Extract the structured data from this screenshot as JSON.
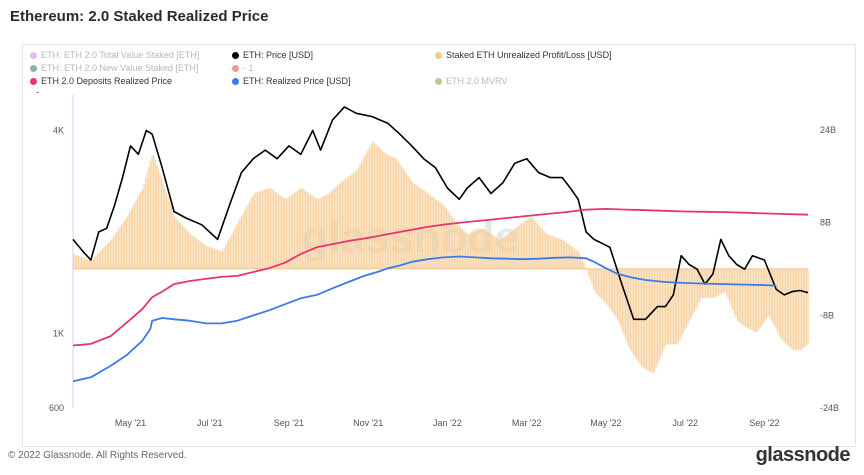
{
  "title": "Ethereum: 2.0 Staked Realized Price",
  "legend": {
    "items": [
      {
        "label": "ETH: ETH 2.0 Total Value Staked [ETH]",
        "color": "#c58ad6",
        "active": false
      },
      {
        "label": "ETH: Price [USD]",
        "color": "#000000",
        "active": true
      },
      {
        "label": "Staked ETH Unrealized Profit/Loss [USD]",
        "color": "#f6c98e",
        "active": true
      },
      {
        "label": "ETH: ETH 2.0 New Value Staked [ETH]",
        "color": "#2f6f6f",
        "active": false
      },
      {
        "label": "- 1",
        "color": "#e0463c",
        "active": false
      },
      {
        "label": "ETH 2.0 Deposits Realized Price",
        "color": "#e8336e",
        "active": true
      },
      {
        "label": "ETH: Realized Price [USD]",
        "color": "#3b7be8",
        "active": true
      },
      {
        "label": "ETH 2.0 MVRV",
        "color": "#8a9a3a",
        "active": false
      }
    ],
    "extra": "-"
  },
  "watermark": "glassnode",
  "footer": "© 2022 Glassnode. All Rights Reserved.",
  "brand": "glassnode",
  "chart_data": {
    "type": "line",
    "title": "Ethereum: 2.0 Staked Realized Price",
    "x_label_positions": [
      0.5,
      2.5,
      4.5,
      6.5,
      8.5,
      10.5,
      12.5,
      14.5,
      16.5
    ],
    "x_labels": [
      "May '21",
      "Jul '21",
      "Sep '21",
      "Nov '21",
      "Jan '22",
      "Mar '22",
      "May '22",
      "Jul '22",
      "Sep '22"
    ],
    "xlim": [
      -0.95,
      17.6
    ],
    "left_axis": {
      "scale": "log",
      "ylim": [
        600,
        5100
      ],
      "ticks": [
        600,
        1000,
        4000
      ],
      "tick_labels": [
        "600",
        "1K",
        "4K"
      ]
    },
    "right_axis": {
      "ylim": [
        -24,
        30
      ],
      "ticks": [
        24,
        8,
        -8,
        -24
      ],
      "tick_labels": [
        "24B",
        "8B",
        "-8B",
        "-24B"
      ],
      "unit": "B USD"
    },
    "series": [
      {
        "name": "ETH: Price [USD]",
        "axis": "left",
        "color": "#000000",
        "x": [
          -0.95,
          -0.7,
          -0.5,
          -0.3,
          -0.1,
          0.1,
          0.3,
          0.5,
          0.7,
          0.9,
          1.05,
          1.3,
          1.6,
          1.9,
          2.3,
          2.7,
          3.0,
          3.3,
          3.6,
          3.9,
          4.2,
          4.5,
          4.8,
          5.1,
          5.3,
          5.6,
          5.9,
          6.2,
          6.6,
          7.0,
          7.3,
          7.6,
          7.9,
          8.2,
          8.5,
          8.8,
          9.0,
          9.3,
          9.6,
          9.9,
          10.2,
          10.5,
          10.8,
          11.1,
          11.4,
          11.6,
          11.8,
          12.0,
          12.2,
          12.4,
          12.6,
          12.9,
          13.2,
          13.5,
          13.8,
          14.0,
          14.2,
          14.4,
          14.6,
          14.8,
          15.0,
          15.2,
          15.4,
          15.6,
          15.8,
          16.0,
          16.2,
          16.5,
          16.8,
          17.0,
          17.2,
          17.4,
          17.6
        ],
        "y": [
          1900,
          1750,
          1650,
          2000,
          2050,
          2400,
          2900,
          3600,
          3400,
          4000,
          3900,
          3100,
          2300,
          2200,
          2100,
          1900,
          2400,
          3000,
          3300,
          3500,
          3300,
          3600,
          3400,
          4000,
          3500,
          4300,
          4700,
          4500,
          4400,
          4200,
          3900,
          3600,
          3300,
          3100,
          2700,
          2500,
          2700,
          2900,
          2600,
          2800,
          3200,
          3300,
          3000,
          2900,
          2900,
          2700,
          2500,
          2000,
          1900,
          1850,
          1800,
          1400,
          1100,
          1100,
          1200,
          1200,
          1300,
          1700,
          1600,
          1550,
          1400,
          1500,
          1900,
          1700,
          1600,
          1550,
          1700,
          1650,
          1350,
          1300,
          1330,
          1340,
          1320
        ]
      },
      {
        "name": "ETH 2.0 Deposits Realized Price",
        "axis": "left",
        "color": "#e8336e",
        "x": [
          -0.95,
          -0.5,
          0.0,
          0.5,
          0.8,
          1.05,
          1.3,
          1.6,
          2.0,
          2.4,
          2.8,
          3.2,
          3.6,
          4.0,
          4.4,
          4.8,
          5.2,
          5.6,
          6.0,
          6.5,
          7.0,
          7.5,
          8.0,
          8.5,
          9.0,
          9.5,
          10.0,
          10.5,
          11.0,
          11.5,
          12.0,
          12.5,
          13.0,
          13.5,
          14.0,
          14.5,
          15.0,
          15.5,
          16.0,
          16.5,
          17.0,
          17.6
        ],
        "y": [
          920,
          930,
          980,
          1100,
          1180,
          1280,
          1330,
          1400,
          1430,
          1450,
          1470,
          1480,
          1520,
          1560,
          1620,
          1720,
          1800,
          1840,
          1880,
          1920,
          1970,
          2020,
          2070,
          2110,
          2140,
          2170,
          2200,
          2230,
          2260,
          2290,
          2330,
          2340,
          2330,
          2320,
          2310,
          2300,
          2295,
          2290,
          2280,
          2270,
          2260,
          2250
        ]
      },
      {
        "name": "ETH: Realized Price [USD]",
        "axis": "left",
        "color": "#3b7be8",
        "x": [
          -0.95,
          -0.5,
          0.0,
          0.4,
          0.8,
          1.0,
          1.05,
          1.3,
          1.6,
          2.0,
          2.4,
          2.8,
          3.2,
          3.6,
          4.0,
          4.4,
          4.8,
          5.2,
          5.6,
          6.0,
          6.4,
          6.8,
          7.0,
          7.3,
          7.6,
          8.0,
          8.4,
          8.8,
          9.2,
          9.6,
          10.0,
          10.4,
          10.8,
          11.2,
          11.6,
          12.0,
          12.2,
          12.5,
          12.8,
          13.2,
          13.5,
          14.0,
          14.5,
          15.0,
          15.5,
          16.0,
          16.5,
          16.8
        ],
        "y": [
          720,
          740,
          800,
          860,
          950,
          1030,
          1090,
          1110,
          1100,
          1090,
          1070,
          1070,
          1090,
          1130,
          1170,
          1220,
          1270,
          1300,
          1360,
          1420,
          1480,
          1530,
          1560,
          1590,
          1630,
          1660,
          1680,
          1690,
          1680,
          1670,
          1665,
          1660,
          1665,
          1675,
          1680,
          1670,
          1630,
          1560,
          1500,
          1460,
          1440,
          1420,
          1410,
          1405,
          1400,
          1395,
          1390,
          1385
        ]
      },
      {
        "name": "Staked ETH Unrealized Profit/Loss [USD]",
        "axis": "right",
        "type": "area",
        "color": "#f6c98e",
        "unit": "B",
        "x": [
          -0.95,
          -0.5,
          0.0,
          0.4,
          0.8,
          1.05,
          1.3,
          1.6,
          2.0,
          2.4,
          2.8,
          3.2,
          3.6,
          4.0,
          4.4,
          4.8,
          5.2,
          5.5,
          5.8,
          6.2,
          6.6,
          6.9,
          7.2,
          7.6,
          8.0,
          8.4,
          8.7,
          9.0,
          9.4,
          9.8,
          10.2,
          10.6,
          11.0,
          11.4,
          11.8,
          12.0,
          12.2,
          12.5,
          12.8,
          13.1,
          13.4,
          13.7,
          14.0,
          14.3,
          14.6,
          14.9,
          15.2,
          15.5,
          15.8,
          16.0,
          16.3,
          16.6,
          16.9,
          17.2,
          17.4,
          17.6
        ],
        "y": [
          2.5,
          1.5,
          5,
          9,
          14,
          20,
          15,
          9,
          6,
          4,
          3,
          8,
          13,
          14,
          12,
          14,
          12,
          13,
          15,
          17,
          22,
          20,
          19,
          15,
          13,
          11,
          8,
          6,
          7,
          5,
          7,
          9,
          6,
          5,
          3,
          0,
          -4,
          -6,
          -9,
          -14,
          -17,
          -18,
          -13,
          -13,
          -9,
          -5,
          -5,
          -4,
          -9,
          -10,
          -11,
          -8,
          -12,
          -14,
          -14,
          -13
        ]
      }
    ]
  }
}
